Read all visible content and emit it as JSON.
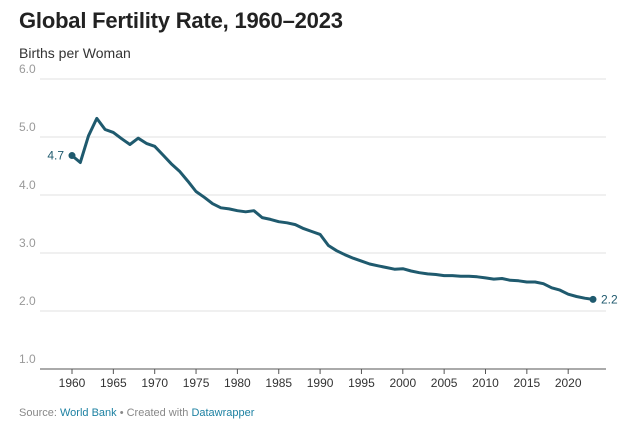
{
  "title": "Global Fertility Rate, 1960–2023",
  "subtitle": "Births per Woman",
  "footer": {
    "source_prefix": "Source:",
    "source_link": "World Bank",
    "separator": "• Created with",
    "tool_link": "Datawrapper"
  },
  "chart_data": {
    "type": "line",
    "title": "Global Fertility Rate, 1960–2023",
    "ylabel": "Births per Woman",
    "xlabel": "",
    "xlim": [
      1960,
      2023
    ],
    "ylim": [
      1.0,
      6.0
    ],
    "y_ticks": [
      "1.0",
      "2.0",
      "3.0",
      "4.0",
      "5.0",
      "6.0"
    ],
    "x_ticks": [
      "1960",
      "1965",
      "1970",
      "1975",
      "1980",
      "1985",
      "1990",
      "1995",
      "2000",
      "2005",
      "2010",
      "2015",
      "2020"
    ],
    "grid": true,
    "line_color": "#1f5a6e",
    "start_label": "4.7",
    "end_label": "2.2",
    "x": [
      1960,
      1961,
      1962,
      1963,
      1964,
      1965,
      1966,
      1967,
      1968,
      1969,
      1970,
      1971,
      1972,
      1973,
      1974,
      1975,
      1976,
      1977,
      1978,
      1979,
      1980,
      1981,
      1982,
      1983,
      1984,
      1985,
      1986,
      1987,
      1988,
      1989,
      1990,
      1991,
      1992,
      1993,
      1994,
      1995,
      1996,
      1997,
      1998,
      1999,
      2000,
      2001,
      2002,
      2003,
      2004,
      2005,
      2006,
      2007,
      2008,
      2009,
      2010,
      2011,
      2012,
      2013,
      2014,
      2015,
      2016,
      2017,
      2018,
      2019,
      2020,
      2021,
      2022,
      2023
    ],
    "y": [
      4.68,
      4.56,
      5.02,
      5.32,
      5.13,
      5.08,
      4.97,
      4.87,
      4.98,
      4.89,
      4.84,
      4.69,
      4.54,
      4.41,
      4.24,
      4.06,
      3.96,
      3.85,
      3.78,
      3.76,
      3.73,
      3.71,
      3.73,
      3.61,
      3.58,
      3.54,
      3.52,
      3.49,
      3.42,
      3.37,
      3.32,
      3.13,
      3.04,
      2.97,
      2.91,
      2.86,
      2.81,
      2.78,
      2.75,
      2.72,
      2.73,
      2.69,
      2.66,
      2.64,
      2.63,
      2.61,
      2.61,
      2.6,
      2.6,
      2.59,
      2.57,
      2.55,
      2.56,
      2.53,
      2.52,
      2.5,
      2.5,
      2.47,
      2.4,
      2.36,
      2.29,
      2.25,
      2.22,
      2.2
    ]
  }
}
